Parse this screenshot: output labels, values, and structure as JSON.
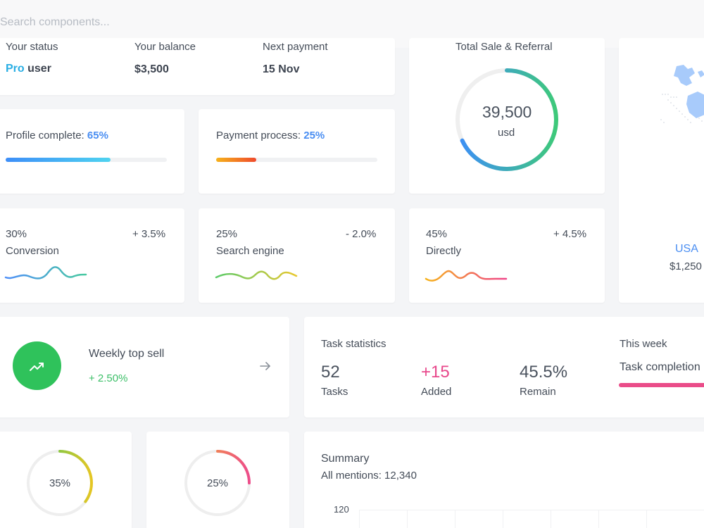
{
  "search": {
    "placeholder": "Search components..."
  },
  "status_row": {
    "status": {
      "label": "Your status",
      "tier": "Pro",
      "suffix": "user"
    },
    "balance": {
      "label": "Your balance",
      "value": "$3,500"
    },
    "payment": {
      "label": "Next payment",
      "value": "15 Nov"
    }
  },
  "total_sale": {
    "label": "Total Sale & Referral",
    "value": "39,500",
    "unit": "usd",
    "progress": 0.68
  },
  "profile": {
    "label": "Profile complete:",
    "percent": "65%",
    "progress": 0.65,
    "colors": [
      "#3d8ef8",
      "#4fd3f0"
    ]
  },
  "payment_process": {
    "label": "Payment process:",
    "percent": "25%",
    "progress": 0.25,
    "colors": [
      "#f6b21b",
      "#ef4a2c"
    ]
  },
  "stats": [
    {
      "percent": "30%",
      "change": "+ 3.5%",
      "name": "Conversion",
      "colors": [
        "#4e8ff8",
        "#47c9a0"
      ]
    },
    {
      "percent": "25%",
      "change": "- 2.0%",
      "name": "Search engine",
      "colors": [
        "#5ccb6a",
        "#e8c830"
      ]
    },
    {
      "percent": "45%",
      "change": "+ 4.5%",
      "name": "Directly",
      "colors": [
        "#f6b21b",
        "#f0468a"
      ]
    }
  ],
  "map": {
    "country": "USA",
    "value": "$1,250"
  },
  "weekly": {
    "title": "Weekly top sell",
    "change": "+ 2.50%"
  },
  "tasks": {
    "title": "Task statistics",
    "items": [
      {
        "value": "52",
        "label": "Tasks"
      },
      {
        "value": "+15",
        "label": "Added"
      },
      {
        "value": "45.5%",
        "label": "Remain"
      }
    ],
    "week_title": "This week",
    "week_label": "Task completion",
    "accent": "#ea4c89"
  },
  "donuts": [
    {
      "label": "35%",
      "progress": 0.35,
      "colors": [
        "#3ec95f",
        "#e5c623"
      ]
    },
    {
      "label": "25%",
      "progress": 0.25,
      "colors": [
        "#f4b12a",
        "#ed4c8a"
      ]
    }
  ],
  "summary": {
    "title": "Summary",
    "subtitle": "All mentions: 12,340",
    "y_tick": "120"
  }
}
